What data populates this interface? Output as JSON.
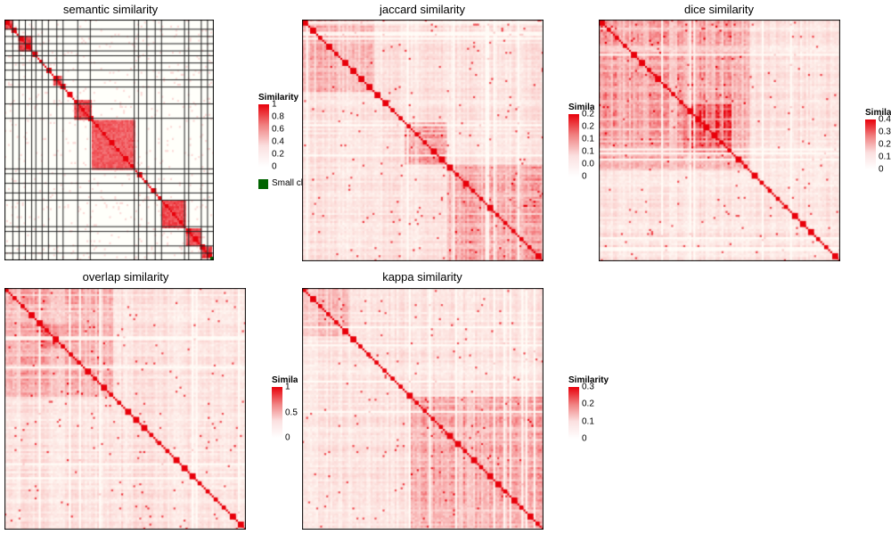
{
  "chart_data": [
    {
      "type": "heatmap",
      "title": "semantic similarity",
      "legend": {
        "title": "Similarity",
        "ticks": [
          "1",
          "0.8",
          "0.6",
          "0.4",
          "0.2",
          "0"
        ],
        "tick_values": [
          1,
          0.8,
          0.6,
          0.4,
          0.2,
          0
        ],
        "extra_key_label": "Small cluster",
        "extra_key_color": "#006400"
      },
      "range": [
        0,
        1
      ],
      "block_style": "clustered",
      "block_boundaries": [
        0.04,
        0.07,
        0.1,
        0.13,
        0.15,
        0.18,
        0.21,
        0.25,
        0.28,
        0.35,
        0.41,
        0.62,
        0.64,
        0.68,
        0.72,
        0.75,
        0.86,
        0.88,
        0.94,
        0.97
      ],
      "blocks": [
        [
          0.0,
          0.04,
          0.85
        ],
        [
          0.06,
          0.13,
          0.85
        ],
        [
          0.23,
          0.27,
          0.85
        ],
        [
          0.33,
          0.41,
          0.85
        ],
        [
          0.41,
          0.62,
          0.75
        ],
        [
          0.75,
          0.86,
          0.85
        ],
        [
          0.86,
          0.94,
          0.8
        ],
        [
          0.94,
          0.99,
          0.9
        ]
      ],
      "colors": {
        "high": "#e8000a",
        "low": "#ffffff"
      }
    },
    {
      "type": "heatmap",
      "title": "jaccard similarity",
      "legend": {
        "title": "Similarity",
        "ticks": [
          "0.25",
          "0.20",
          "0.15",
          "0.10",
          "0.05",
          "0"
        ],
        "tick_values": [
          0.25,
          0.2,
          0.15,
          0.1,
          0.05,
          0
        ]
      },
      "range": [
        0,
        0.25
      ],
      "block_style": "noisy",
      "blocks": [
        [
          0.42,
          0.6,
          0.55
        ],
        [
          0.6,
          1.0,
          0.5
        ],
        [
          0.0,
          0.3,
          0.35
        ]
      ],
      "colors": {
        "high": "#e8000a",
        "low": "#ffffff"
      }
    },
    {
      "type": "heatmap",
      "title": "dice similarity",
      "legend": {
        "title": "Similarity",
        "ticks": [
          "0.4",
          "0.3",
          "0.2",
          "0.1",
          "0"
        ],
        "tick_values": [
          0.4,
          0.3,
          0.2,
          0.1,
          0
        ]
      },
      "range": [
        0,
        0.4
      ],
      "block_style": "noisy",
      "blocks": [
        [
          0.0,
          0.62,
          0.5
        ],
        [
          0.35,
          0.55,
          0.65
        ]
      ],
      "colors": {
        "high": "#e8000a",
        "low": "#ffffff"
      }
    },
    {
      "type": "heatmap",
      "title": "overlap similarity",
      "legend": {
        "title": "Similarity",
        "ticks": [
          "1",
          "0.5",
          "0"
        ],
        "tick_values": [
          1,
          0.5,
          0
        ]
      },
      "range": [
        0,
        1
      ],
      "block_style": "noisy",
      "blocks": [
        [
          0.0,
          0.45,
          0.4
        ],
        [
          0.15,
          0.25,
          0.5
        ]
      ],
      "colors": {
        "high": "#e8000a",
        "low": "#ffffff"
      }
    },
    {
      "type": "heatmap",
      "title": "kappa similarity",
      "legend": {
        "title": "Similarity",
        "ticks": [
          "0.3",
          "0.2",
          "0.1",
          "0"
        ],
        "tick_values": [
          0.3,
          0.2,
          0.1,
          0
        ]
      },
      "range": [
        0,
        0.3
      ],
      "block_style": "noisy",
      "blocks": [
        [
          0.45,
          1.0,
          0.45
        ],
        [
          0.0,
          0.2,
          0.35
        ]
      ],
      "colors": {
        "high": "#e8000a",
        "low": "#ffffff"
      }
    }
  ]
}
